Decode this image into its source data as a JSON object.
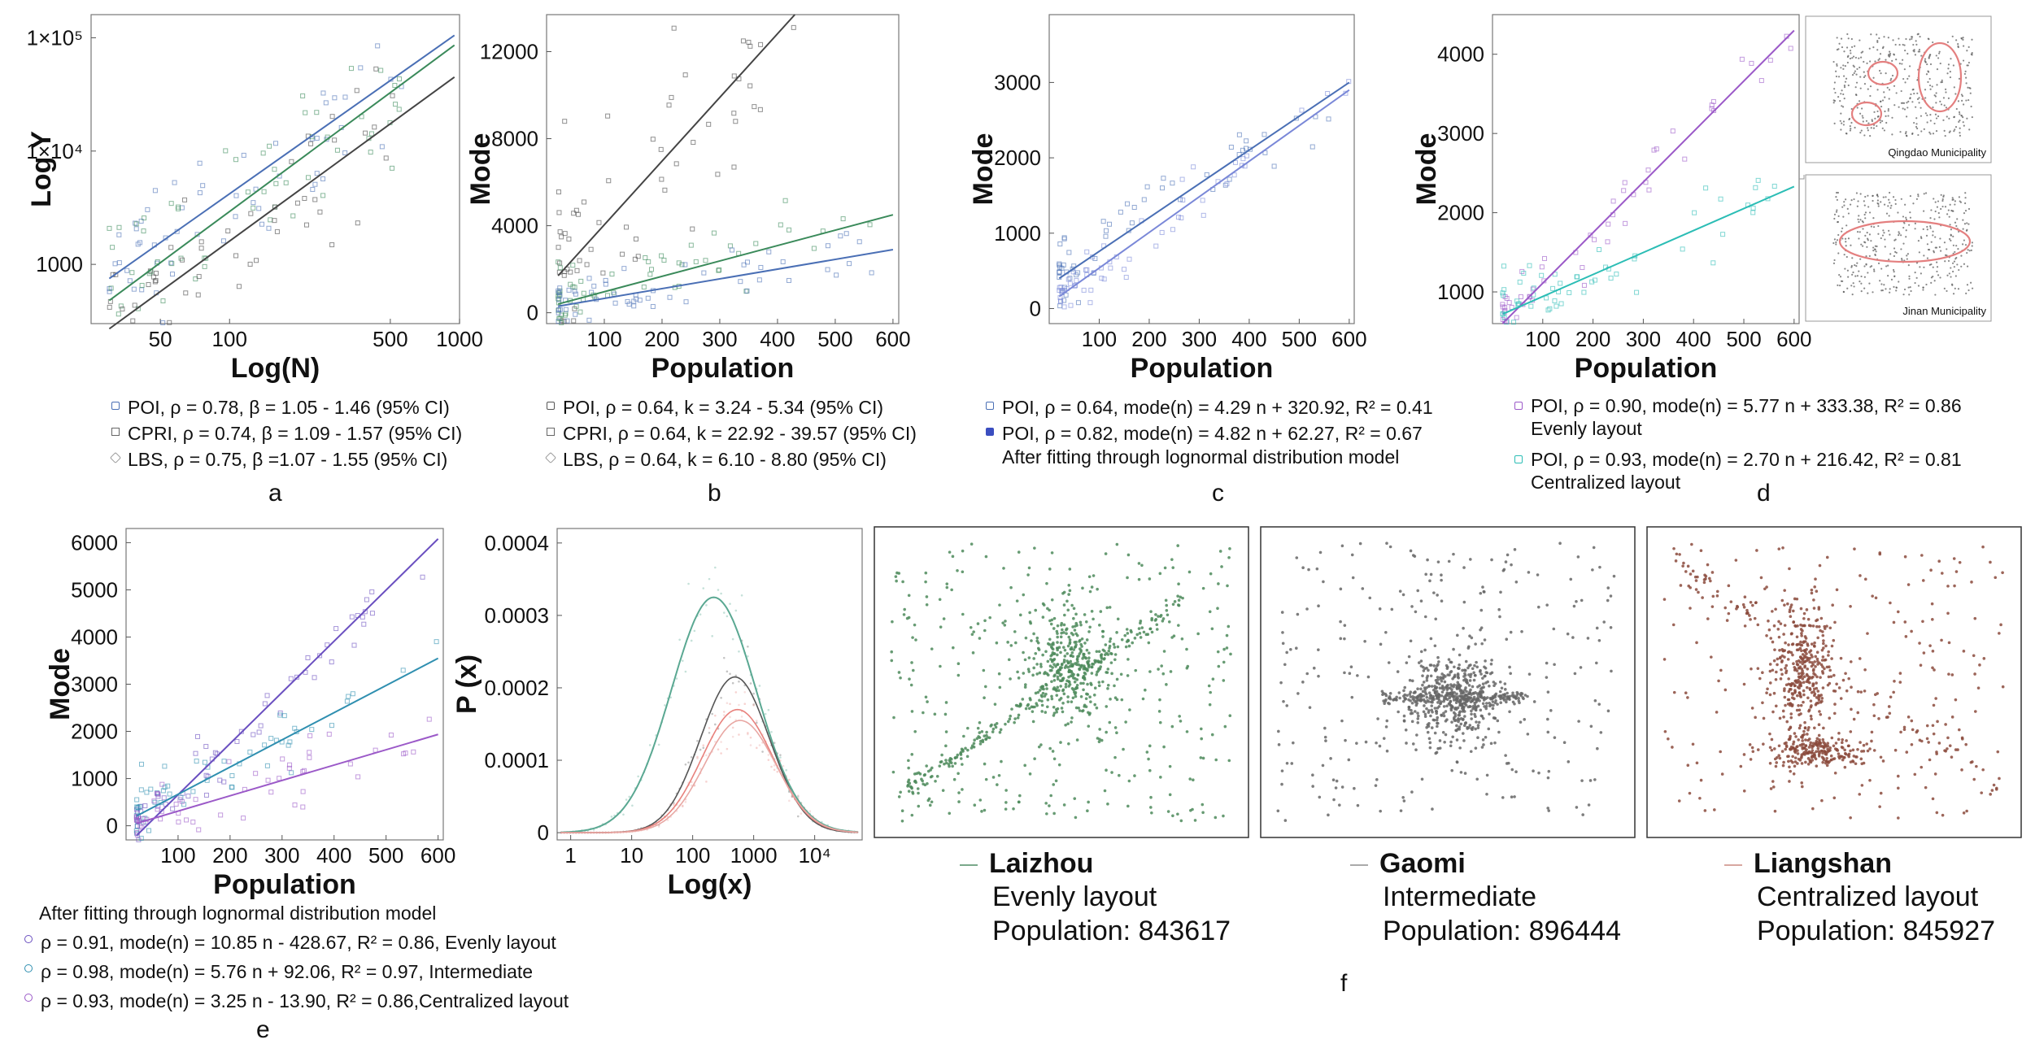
{
  "colors": {
    "poi": "#4a6fb5",
    "cpri": "#3a8a5a",
    "lbs": "#444444",
    "purple": "#9b59c8",
    "cyan": "#2bbdb5",
    "teal": "#2f8fb0",
    "green": "#4c8a5a",
    "gray": "#666666",
    "brown": "#8b4a3c",
    "salmon": "#e8817c"
  },
  "chart_data": [
    {
      "id": "a",
      "type": "scatter",
      "xlabel": "Log(N)",
      "ylabel": "Log Y",
      "xscale": "log",
      "yscale": "log",
      "xlim": [
        25,
        1000
      ],
      "ylim": [
        300,
        160000
      ],
      "xticks": [
        {
          "v": 50,
          "t": "50"
        },
        {
          "v": 100,
          "t": "100"
        },
        {
          "v": 500,
          "t": "500"
        },
        {
          "v": 1000,
          "t": "1000"
        }
      ],
      "yticks": [
        {
          "v": 1000,
          "t": "1000"
        },
        {
          "v": 10000,
          "t": "1×10⁴"
        },
        {
          "v": 100000,
          "t": "1×10⁵"
        }
      ],
      "lines": [
        {
          "color": "poi",
          "x": [
            30,
            950
          ],
          "y": [
            750,
            105000
          ]
        },
        {
          "color": "cpri",
          "x": [
            30,
            950
          ],
          "y": [
            480,
            86000
          ]
        },
        {
          "color": "lbs",
          "x": [
            30,
            950
          ],
          "y": [
            270,
            45000
          ]
        }
      ],
      "legend": [
        {
          "marker": "square",
          "color": "poi",
          "text": "POI,  ρ = 0.78, β = 1.05 - 1.46 (95% CI)"
        },
        {
          "marker": "triangle",
          "color": "lbs",
          "text": "CPRI,  ρ = 0.74, β = 1.09 - 1.57 (95% CI)"
        },
        {
          "marker": "diamond",
          "color": "lbs",
          "text": "LBS,  ρ = 0.75, β =1.07 - 1.55 (95% CI)"
        }
      ],
      "letter": "a"
    },
    {
      "id": "b",
      "type": "scatter",
      "xlabel": "Population",
      "ylabel": "Mode",
      "xlim": [
        0,
        610
      ],
      "ylim": [
        -500,
        13700
      ],
      "xticks": [
        {
          "v": 100,
          "t": "100"
        },
        {
          "v": 200,
          "t": "200"
        },
        {
          "v": 300,
          "t": "300"
        },
        {
          "v": 400,
          "t": "400"
        },
        {
          "v": 500,
          "t": "500"
        },
        {
          "v": 600,
          "t": "600"
        }
      ],
      "yticks": [
        {
          "v": 0,
          "t": "0"
        },
        {
          "v": 4000,
          "t": "4000"
        },
        {
          "v": 8000,
          "t": "8000"
        },
        {
          "v": 12000,
          "t": "12000"
        }
      ],
      "lines": [
        {
          "color": "lbs",
          "x": [
            20,
            430
          ],
          "y": [
            1700,
            13700
          ]
        },
        {
          "color": "cpri",
          "x": [
            20,
            600
          ],
          "y": [
            400,
            4500
          ]
        },
        {
          "color": "poi",
          "x": [
            20,
            600
          ],
          "y": [
            300,
            2900
          ]
        }
      ],
      "legend": [
        {
          "marker": "square",
          "color": "lbs",
          "text": "POI,  ρ = 0.64, k = 3.24 - 5.34 (95% CI)"
        },
        {
          "marker": "triangle",
          "color": "lbs",
          "text": "CPRI,  ρ = 0.64, k = 22.92 - 39.57 (95% CI)"
        },
        {
          "marker": "diamond",
          "color": "lbs",
          "text": "LBS,  ρ = 0.64, k = 6.10 - 8.80 (95% CI)"
        }
      ],
      "letter": "b"
    },
    {
      "id": "c",
      "type": "scatter",
      "xlabel": "Population",
      "ylabel": "Mode",
      "xlim": [
        0,
        610
      ],
      "ylim": [
        -200,
        3900
      ],
      "xticks": [
        {
          "v": 100,
          "t": "100"
        },
        {
          "v": 200,
          "t": "200"
        },
        {
          "v": 300,
          "t": "300"
        },
        {
          "v": 400,
          "t": "400"
        },
        {
          "v": 500,
          "t": "500"
        },
        {
          "v": 600,
          "t": "600"
        }
      ],
      "yticks": [
        {
          "v": 0,
          "t": "0"
        },
        {
          "v": 1000,
          "t": "1000"
        },
        {
          "v": 2000,
          "t": "2000"
        },
        {
          "v": 3000,
          "t": "3000"
        }
      ],
      "lines": [
        {
          "color": "poi",
          "x": [
            20,
            600
          ],
          "y": [
            400,
            3000
          ]
        },
        {
          "color": "#7a88d8",
          "x": [
            20,
            600
          ],
          "y": [
            160,
            2900
          ]
        }
      ],
      "legend": [
        {
          "marker": "square",
          "color": "poi",
          "text": "POI,  ρ = 0.64, mode(n) = 4.29 n + 320.92, R² = 0.41"
        },
        {
          "marker": "star",
          "color": "#3b4ec0",
          "text": "POI,  ρ = 0.82, mode(n) = 4.82 n + 62.27, R² = 0.67"
        },
        {
          "marker": "none",
          "text": "After fitting through lognormal distribution model"
        }
      ],
      "letter": "c"
    },
    {
      "id": "d",
      "type": "scatter",
      "xlabel": "Population",
      "ylabel": "Mode",
      "xlim": [
        0,
        610
      ],
      "ylim": [
        600,
        4500
      ],
      "xticks": [
        {
          "v": 100,
          "t": "100"
        },
        {
          "v": 200,
          "t": "200"
        },
        {
          "v": 300,
          "t": "300"
        },
        {
          "v": 400,
          "t": "400"
        },
        {
          "v": 500,
          "t": "500"
        },
        {
          "v": 600,
          "t": "600"
        }
      ],
      "yticks": [
        {
          "v": 1000,
          "t": "1000"
        },
        {
          "v": 2000,
          "t": "2000"
        },
        {
          "v": 3000,
          "t": "3000"
        },
        {
          "v": 4000,
          "t": "4000"
        }
      ],
      "lines": [
        {
          "color": "purple",
          "x": [
            20,
            600
          ],
          "y": [
            600,
            4300
          ]
        },
        {
          "color": "cyan",
          "x": [
            20,
            600
          ],
          "y": [
            720,
            2330
          ]
        }
      ],
      "legend": [
        {
          "marker": "square",
          "color": "purple",
          "text": "POI,  ρ = 0.90, mode(n) = 5.77 n + 333.38, R² = 0.86"
        },
        {
          "marker": "none",
          "text": "Evenly layout"
        },
        {
          "marker": "square",
          "color": "cyan",
          "text": "POI,  ρ = 0.93, mode(n) = 2.70 n + 216.42, R² = 0.81"
        },
        {
          "marker": "none",
          "text": "Centralized layout"
        }
      ],
      "insets": [
        "Qingdao Municipality",
        "Jinan Municipality"
      ],
      "letter": "d"
    },
    {
      "id": "e",
      "type": "scatter",
      "xlabel": "Population",
      "ylabel": "Mode",
      "xlim": [
        0,
        610
      ],
      "ylim": [
        -300,
        6300
      ],
      "xticks": [
        {
          "v": 100,
          "t": "100"
        },
        {
          "v": 200,
          "t": "200"
        },
        {
          "v": 300,
          "t": "300"
        },
        {
          "v": 400,
          "t": "400"
        },
        {
          "v": 500,
          "t": "500"
        },
        {
          "v": 600,
          "t": "600"
        }
      ],
      "yticks": [
        {
          "v": 0,
          "t": "0"
        },
        {
          "v": 1000,
          "t": "1000"
        },
        {
          "v": 2000,
          "t": "2000"
        },
        {
          "v": 3000,
          "t": "3000"
        },
        {
          "v": 4000,
          "t": "4000"
        },
        {
          "v": 5000,
          "t": "5000"
        },
        {
          "v": 6000,
          "t": "6000"
        }
      ],
      "lines": [
        {
          "color": "#6a4fc0",
          "x": [
            20,
            600
          ],
          "y": [
            -210,
            6080
          ]
        },
        {
          "color": "teal",
          "x": [
            20,
            600
          ],
          "y": [
            207,
            3550
          ]
        },
        {
          "color": "purple",
          "x": [
            20,
            600
          ],
          "y": [
            50,
            1936
          ]
        }
      ],
      "legend": [
        {
          "marker": "none",
          "text": "After fitting through lognormal distribution model"
        },
        {
          "marker": "circle",
          "color": "#6a4fc0",
          "text": "ρ = 0.91, mode(n) = 10.85 n - 428.67, R² = 0.86, Evenly layout"
        },
        {
          "marker": "circle",
          "color": "teal",
          "text": "ρ = 0.98, mode(n) = 5.76 n + 92.06, R² = 0.97, Intermediate"
        },
        {
          "marker": "circle",
          "color": "purple",
          "text": "ρ = 0.93, mode(n) = 3.25 n  - 13.90, R² = 0.86,Centralized layout"
        }
      ],
      "letter": "e"
    },
    {
      "id": "pdf",
      "type": "line",
      "xlabel": "Log(x)",
      "ylabel": "P (x)",
      "xscale": "log",
      "xlim": [
        0.6,
        60000
      ],
      "ylim": [
        -1e-05,
        0.00042
      ],
      "xticks": [
        {
          "v": 1,
          "t": "1"
        },
        {
          "v": 10,
          "t": "10"
        },
        {
          "v": 100,
          "t": "100"
        },
        {
          "v": 1000,
          "t": "1000"
        },
        {
          "v": 10000,
          "t": "10⁴"
        }
      ],
      "yticks": [
        {
          "v": 0,
          "t": "0"
        },
        {
          "v": 0.0001,
          "t": "0.0001"
        },
        {
          "v": 0.0002,
          "t": "0.0002"
        },
        {
          "v": 0.0003,
          "t": "0.0003"
        },
        {
          "v": 0.0004,
          "t": "0.0004"
        }
      ],
      "curves": [
        {
          "color": "#5aa892",
          "peak": 0.000325,
          "mu": 5.4,
          "sigma": 1.6
        },
        {
          "color": "#555555",
          "peak": 0.000215,
          "mu": 6.2,
          "sigma": 1.3
        },
        {
          "color": "#e8817c",
          "peak": 0.00017,
          "mu": 6.3,
          "sigma": 1.35
        },
        {
          "color": "#e8a7a3",
          "peak": 0.000155,
          "mu": 6.4,
          "sigma": 1.35
        }
      ]
    }
  ],
  "panel_f": {
    "letter": "f",
    "cities": [
      {
        "name": "Laizhou",
        "layout": "Evenly layout",
        "population": "Population: 843617",
        "color": "green"
      },
      {
        "name": "Gaomi",
        "layout": "Intermediate",
        "population": "Population: 896444",
        "color": "gray"
      },
      {
        "name": "Liangshan",
        "layout": "Centralized layout",
        "population": "Population: 845927",
        "color": "brown"
      }
    ]
  }
}
